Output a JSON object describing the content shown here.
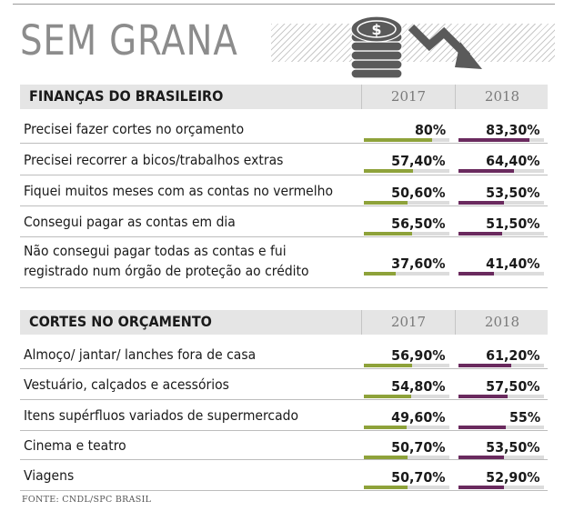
{
  "title": "SEM GRANA",
  "source": "FONTE: CNDL/SPC BRASIL",
  "colors": {
    "series_2017": "#8ea23a",
    "series_2018": "#6a2a5e",
    "header_bg": "#e5e5e5",
    "title": "#8c8c8c"
  },
  "icons": [
    "coin-stack-icon",
    "dollar-sign-icon",
    "downward-trend-arrow-icon"
  ],
  "chart_data": [
    {
      "type": "table",
      "title": "FINANÇAS DO BRASILEIRO",
      "columns": [
        "2017",
        "2018"
      ],
      "unit": "%",
      "rows": [
        {
          "label": "Precisei fazer cortes no orçamento",
          "values": [
            80,
            83.3
          ],
          "display": [
            "80%",
            "83,30%"
          ]
        },
        {
          "label": "Precisei recorrer a bicos/trabalhos extras",
          "values": [
            57.4,
            64.4
          ],
          "display": [
            "57,40%",
            "64,40%"
          ]
        },
        {
          "label": "Fiquei muitos meses com as contas no vermelho",
          "values": [
            50.6,
            53.5
          ],
          "display": [
            "50,60%",
            "53,50%"
          ]
        },
        {
          "label": "Consegui pagar as contas em dia",
          "values": [
            56.5,
            51.5
          ],
          "display": [
            "56,50%",
            "51,50%"
          ]
        },
        {
          "label": [
            "Não consegui pagar todas as contas e fui",
            "registrado num órgão de proteção ao crédito"
          ],
          "values": [
            37.6,
            41.4
          ],
          "display": [
            "37,60%",
            "41,40%"
          ]
        }
      ]
    },
    {
      "type": "table",
      "title": "CORTES NO ORÇAMENTO",
      "columns": [
        "2017",
        "2018"
      ],
      "unit": "%",
      "rows": [
        {
          "label": "Almoço/ jantar/ lanches fora de casa",
          "values": [
            56.9,
            61.2
          ],
          "display": [
            "56,90%",
            "61,20%"
          ]
        },
        {
          "label": "Vestuário, calçados e acessórios",
          "values": [
            54.8,
            57.5
          ],
          "display": [
            "54,80%",
            "57,50%"
          ]
        },
        {
          "label": "Itens supérfluos variados de supermercado",
          "values": [
            49.6,
            55
          ],
          "display": [
            "49,60%",
            "55%"
          ]
        },
        {
          "label": "Cinema e teatro",
          "values": [
            50.7,
            53.5
          ],
          "display": [
            "50,70%",
            "53,50%"
          ]
        },
        {
          "label": "Viagens",
          "values": [
            50.7,
            52.9
          ],
          "display": [
            "50,70%",
            "52,90%"
          ]
        }
      ]
    }
  ]
}
